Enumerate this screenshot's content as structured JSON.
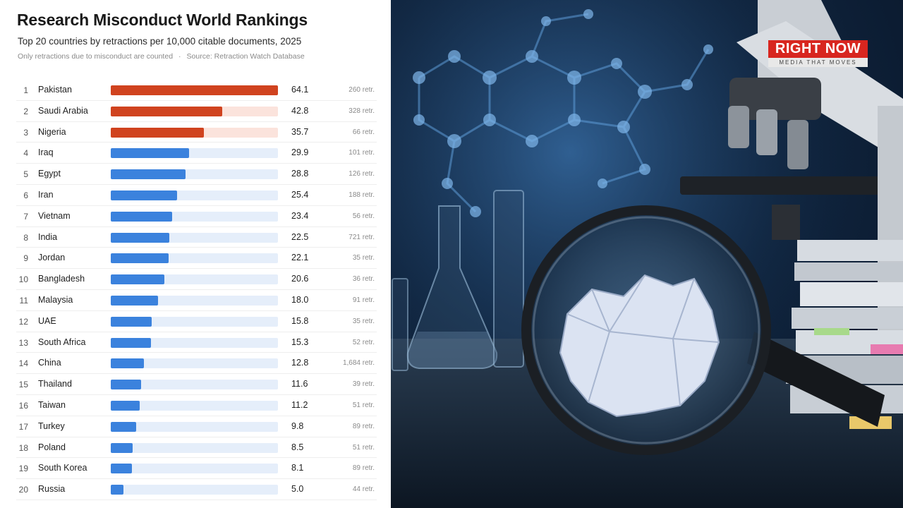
{
  "header": {
    "title": "Research Misconduct World Rankings",
    "subtitle": "Top 20 countries by retractions per 10,000 citable documents, 2025",
    "note": "Only retractions due to misconduct are counted",
    "separator": "·",
    "source": "Source: Retraction Watch Database"
  },
  "colors": {
    "highlight_bar": "#d0431f",
    "highlight_track": "#fbe3dc",
    "normal_bar": "#3b82dd",
    "normal_track": "#e5eefa"
  },
  "logo": {
    "text": "RIGHT NOW",
    "tagline": "MEDIA THAT MOVES"
  },
  "chart_data": {
    "type": "bar",
    "orientation": "horizontal",
    "title": "Research Misconduct World Rankings",
    "subtitle": "Top 20 countries by retractions per 10,000 citable documents, 2025",
    "xlim": [
      0,
      64.1
    ],
    "grid": false,
    "highlighted_ranks": [
      1,
      2,
      3
    ],
    "rows": [
      {
        "rank": "1",
        "country": "Pakistan",
        "value": 64.1,
        "retractions": "260 retr."
      },
      {
        "rank": "2",
        "country": "Saudi Arabia",
        "value": 42.8,
        "retractions": "328 retr."
      },
      {
        "rank": "3",
        "country": "Nigeria",
        "value": 35.7,
        "retractions": "66 retr."
      },
      {
        "rank": "4",
        "country": "Iraq",
        "value": 29.9,
        "retractions": "101 retr."
      },
      {
        "rank": "5",
        "country": "Egypt",
        "value": 28.8,
        "retractions": "126 retr."
      },
      {
        "rank": "6",
        "country": "Iran",
        "value": 25.4,
        "retractions": "188 retr."
      },
      {
        "rank": "7",
        "country": "Vietnam",
        "value": 23.4,
        "retractions": "56 retr."
      },
      {
        "rank": "8",
        "country": "India",
        "value": 22.5,
        "retractions": "721 retr."
      },
      {
        "rank": "9",
        "country": "Jordan",
        "value": 22.1,
        "retractions": "35 retr."
      },
      {
        "rank": "10",
        "country": "Bangladesh",
        "value": 20.6,
        "retractions": "36 retr."
      },
      {
        "rank": "11",
        "country": "Malaysia",
        "value": 18.0,
        "retractions": "91 retr."
      },
      {
        "rank": "12",
        "country": "UAE",
        "value": 15.8,
        "retractions": "35 retr."
      },
      {
        "rank": "13",
        "country": "South Africa",
        "value": 15.3,
        "retractions": "52 retr."
      },
      {
        "rank": "14",
        "country": "China",
        "value": 12.8,
        "retractions": "1,684 retr."
      },
      {
        "rank": "15",
        "country": "Thailand",
        "value": 11.6,
        "retractions": "39 retr."
      },
      {
        "rank": "16",
        "country": "Taiwan",
        "value": 11.2,
        "retractions": "51 retr."
      },
      {
        "rank": "17",
        "country": "Turkey",
        "value": 9.8,
        "retractions": "89 retr."
      },
      {
        "rank": "18",
        "country": "Poland",
        "value": 8.5,
        "retractions": "51 retr."
      },
      {
        "rank": "19",
        "country": "South Korea",
        "value": 8.1,
        "retractions": "89 retr."
      },
      {
        "rank": "20",
        "country": "Russia",
        "value": 5.0,
        "retractions": "44 retr."
      }
    ]
  }
}
